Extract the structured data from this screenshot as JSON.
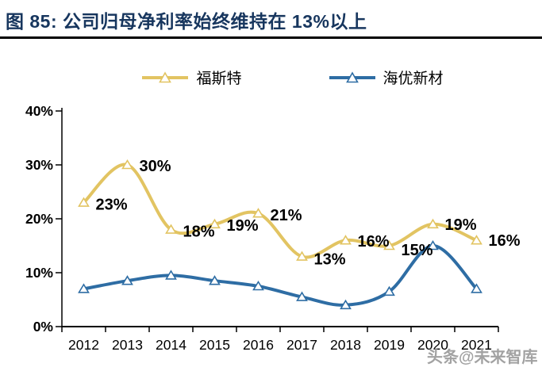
{
  "header": {
    "figure_label": "图 85:",
    "title": "图 85: 公司归母净利率始终维持在 13%以上"
  },
  "watermark": "头条@未来智库",
  "legend": [
    {
      "label": "福斯特",
      "color": "#E2C462"
    },
    {
      "label": "海优新材",
      "color": "#2E6DA4"
    }
  ],
  "colors": {
    "title_navy": "#17365E",
    "axis": "#000000",
    "data_label": "#000000",
    "foster_gold": "#E2C462",
    "haiyou_blue": "#2E6DA4",
    "watermark_gray": "#9b9b9b"
  },
  "chart_data": {
    "type": "line",
    "title": "公司归母净利率始终维持在 13%以上",
    "categories": [
      "2012",
      "2013",
      "2014",
      "2015",
      "2016",
      "2017",
      "2018",
      "2019",
      "2020",
      "2021"
    ],
    "series": [
      {
        "name": "福斯特",
        "color": "#E2C462",
        "values": [
          23,
          30,
          18,
          19,
          21,
          13,
          16,
          15,
          19,
          16
        ],
        "point_labels": [
          "23%",
          "30%",
          "18%",
          "19%",
          "21%",
          "13%",
          "16%",
          "15%",
          "19%",
          "16%"
        ]
      },
      {
        "name": "海优新材",
        "color": "#2E6DA4",
        "values": [
          7,
          8.5,
          9.5,
          8.5,
          7.5,
          5.5,
          4,
          6.5,
          15,
          7
        ],
        "point_labels": []
      }
    ],
    "xlabel": "",
    "ylabel": "",
    "ylim": [
      0,
      40
    ],
    "ytick_labels": [
      "0%",
      "10%",
      "20%",
      "30%",
      "40%"
    ],
    "ytick_values": [
      0,
      10,
      20,
      30,
      40
    ],
    "grid": false,
    "legend_position": "top",
    "smooth": true,
    "marker": "triangle",
    "unit": "%"
  }
}
